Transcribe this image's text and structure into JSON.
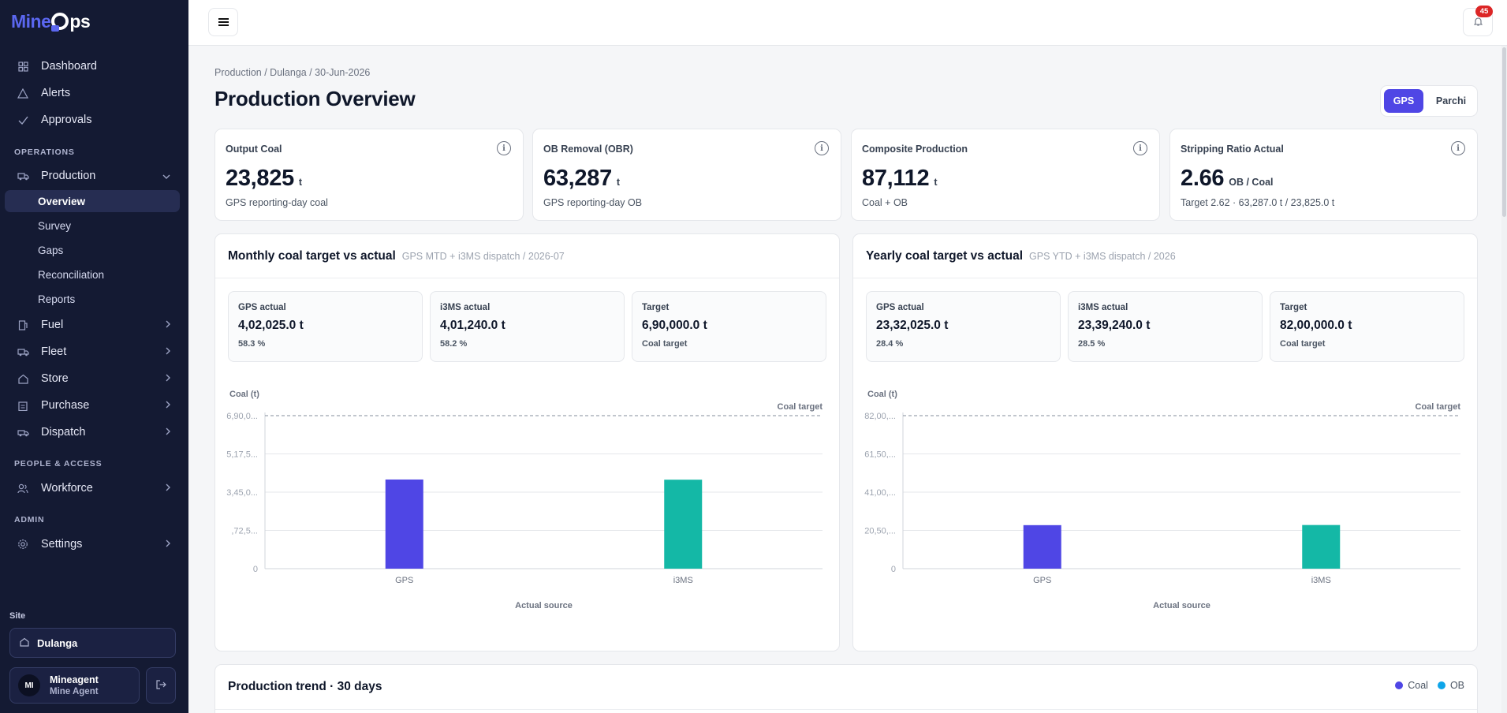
{
  "app": {
    "logo_part1": "Mine",
    "logo_part2": "ps",
    "brand_color": "#5b67f0"
  },
  "sidebar": {
    "top_items": [
      {
        "label": "Dashboard",
        "icon": "grid-icon"
      },
      {
        "label": "Alerts",
        "icon": "warning-icon"
      },
      {
        "label": "Approvals",
        "icon": "check-icon"
      }
    ],
    "sections": {
      "operations": "OPERATIONS",
      "people": "PEOPLE & ACCESS",
      "admin": "ADMIN"
    },
    "production": {
      "label": "Production",
      "icon": "truck-icon",
      "expanded": true,
      "children": [
        "Overview",
        "Survey",
        "Gaps",
        "Reconciliation",
        "Reports"
      ],
      "active_child": "Overview"
    },
    "ops_items": [
      {
        "label": "Fuel",
        "icon": "fuel-icon"
      },
      {
        "label": "Fleet",
        "icon": "truck-icon"
      },
      {
        "label": "Store",
        "icon": "store-icon"
      },
      {
        "label": "Purchase",
        "icon": "clipboard-icon"
      },
      {
        "label": "Dispatch",
        "icon": "dispatch-truck-icon"
      }
    ],
    "workforce": {
      "label": "Workforce",
      "icon": "users-icon"
    },
    "settings": {
      "label": "Settings",
      "icon": "gear-icon"
    },
    "site_label": "Site",
    "site_name": "Dulanga",
    "user": {
      "initials": "MI",
      "name": "Mineagent",
      "role": "Mine Agent"
    }
  },
  "topbar": {
    "notification_count": "45"
  },
  "breadcrumb": "Production / Dulanga / 30-Jun-2026",
  "page_title": "Production Overview",
  "source_toggle": {
    "options": [
      "GPS",
      "Parchi"
    ],
    "selected": "GPS"
  },
  "kpis": [
    {
      "label": "Output Coal",
      "value": "23,825",
      "unit": "t",
      "sub": "GPS reporting-day coal"
    },
    {
      "label": "OB Removal (OBR)",
      "value": "63,287",
      "unit": "t",
      "sub": "GPS reporting-day OB"
    },
    {
      "label": "Composite Production",
      "value": "87,112",
      "unit": "t",
      "sub": "Coal + OB"
    },
    {
      "label": "Stripping Ratio Actual",
      "value": "2.66",
      "unit": "OB / Coal",
      "sub": "Target 2.62 · 63,287.0 t / 23,825.0 t"
    }
  ],
  "monthly": {
    "title": "Monthly coal target vs actual",
    "subtitle": "GPS MTD + i3MS dispatch / 2026-07",
    "stats": [
      {
        "label": "GPS actual",
        "value": "4,02,025.0 t",
        "sub": "58.3 %"
      },
      {
        "label": "i3MS actual",
        "value": "4,01,240.0 t",
        "sub": "58.2 %"
      },
      {
        "label": "Target",
        "value": "6,90,000.0 t",
        "sub": "Coal target"
      }
    ]
  },
  "yearly": {
    "title": "Yearly coal target vs actual",
    "subtitle": "GPS YTD + i3MS dispatch / 2026",
    "stats": [
      {
        "label": "GPS actual",
        "value": "23,32,025.0 t",
        "sub": "28.4 %"
      },
      {
        "label": "i3MS actual",
        "value": "23,39,240.0 t",
        "sub": "28.5 %"
      },
      {
        "label": "Target",
        "value": "82,00,000.0 t",
        "sub": "Coal target"
      }
    ]
  },
  "chart_data": [
    {
      "type": "bar",
      "ylabel": "Coal (t)",
      "xlabel": "Actual source",
      "categories": [
        "GPS",
        "i3MS"
      ],
      "values": [
        402025,
        401240
      ],
      "colors": [
        "#4f46e5",
        "#14b8a6"
      ],
      "target": 690000,
      "target_label": "Coal target",
      "ylim": [
        0,
        690000
      ],
      "yticks": [
        "0",
        ",72,5...",
        "3,45,0...",
        "5,17,5...",
        "6,90,0..."
      ],
      "grid": true
    },
    {
      "type": "bar",
      "ylabel": "Coal (t)",
      "xlabel": "Actual source",
      "categories": [
        "GPS",
        "i3MS"
      ],
      "values": [
        2332025,
        2339240
      ],
      "colors": [
        "#4f46e5",
        "#14b8a6"
      ],
      "target": 8200000,
      "target_label": "Coal target",
      "ylim": [
        0,
        8200000
      ],
      "yticks": [
        "0",
        "20,50,...",
        "41,00,...",
        "61,50,...",
        "82,00,..."
      ],
      "grid": true
    }
  ],
  "trend": {
    "title": "Production trend · 30 days",
    "legend": [
      {
        "label": "Coal",
        "color": "#4f46e5"
      },
      {
        "label": "OB",
        "color": "#0ea5e9"
      }
    ]
  }
}
